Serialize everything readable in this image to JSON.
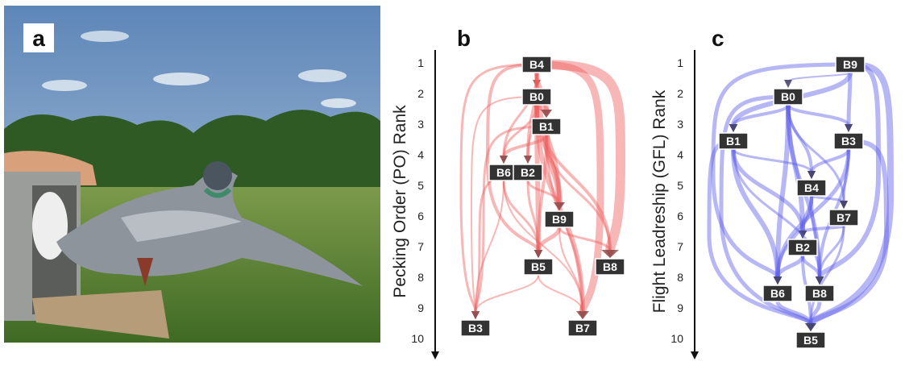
{
  "panels": [
    {
      "label": "a"
    },
    {
      "label": "b",
      "axis_label": "Pecking Order (PO) Rank",
      "ticks": [
        1,
        2,
        3,
        4,
        5,
        6,
        7,
        8,
        9,
        10
      ],
      "nodes": [
        "B4",
        "B0",
        "B1",
        "B6",
        "B2",
        "B9",
        "B5",
        "B8",
        "B3",
        "B7"
      ]
    },
    {
      "label": "c",
      "axis_label": "Flight Leadreship (GFL) Rank",
      "ticks": [
        1,
        2,
        3,
        4,
        5,
        6,
        7,
        8,
        9,
        10
      ],
      "nodes": [
        "B9",
        "B0",
        "B1",
        "B3",
        "B4",
        "B7",
        "B2",
        "B6",
        "B8",
        "B5"
      ]
    }
  ]
}
